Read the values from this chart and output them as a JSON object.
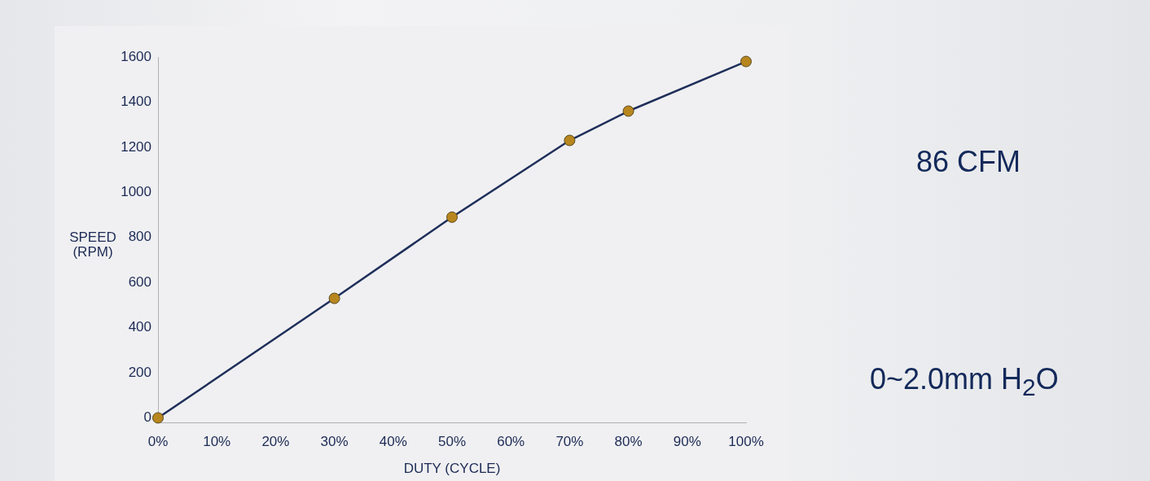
{
  "chart_data": {
    "type": "line",
    "xlabel": "DUTY (CYCLE)",
    "ylabel": "SPEED (RPM)",
    "x": [
      0,
      30,
      50,
      70,
      80,
      100
    ],
    "series": [
      {
        "color": "#1f2f5a",
        "colors": [
          "#b8861e",
          "#b8861e",
          "#b8861e",
          "#b8861e",
          "#b8861e",
          "#b8861e"
        ],
        "values": [
          0,
          530,
          890,
          1230,
          1360,
          1580
        ]
      }
    ],
    "xlim": [
      0,
      100
    ],
    "xticks": [
      {
        "value": 0,
        "label": "0%"
      },
      {
        "value": 10,
        "label": "10%"
      },
      {
        "value": 20,
        "label": "20%"
      },
      {
        "value": 30,
        "label": "30%"
      },
      {
        "value": 40,
        "label": "40%"
      },
      {
        "value": 50,
        "label": "50%"
      },
      {
        "value": 60,
        "label": "60%"
      },
      {
        "value": 70,
        "label": "70%"
      },
      {
        "value": 80,
        "label": "80%"
      },
      {
        "value": 90,
        "label": "90%"
      },
      {
        "value": 100,
        "label": "100%"
      }
    ],
    "ylim": [
      -20,
      1600
    ],
    "yticks": [
      0,
      200,
      400,
      600,
      800,
      1000,
      1200,
      1400,
      1600
    ],
    "marker": "circle",
    "line_style": "solid",
    "grid": false,
    "legend": false,
    "annotations": [
      "86 CFM",
      "0~2.0mm H$_{2}$O"
    ]
  }
}
